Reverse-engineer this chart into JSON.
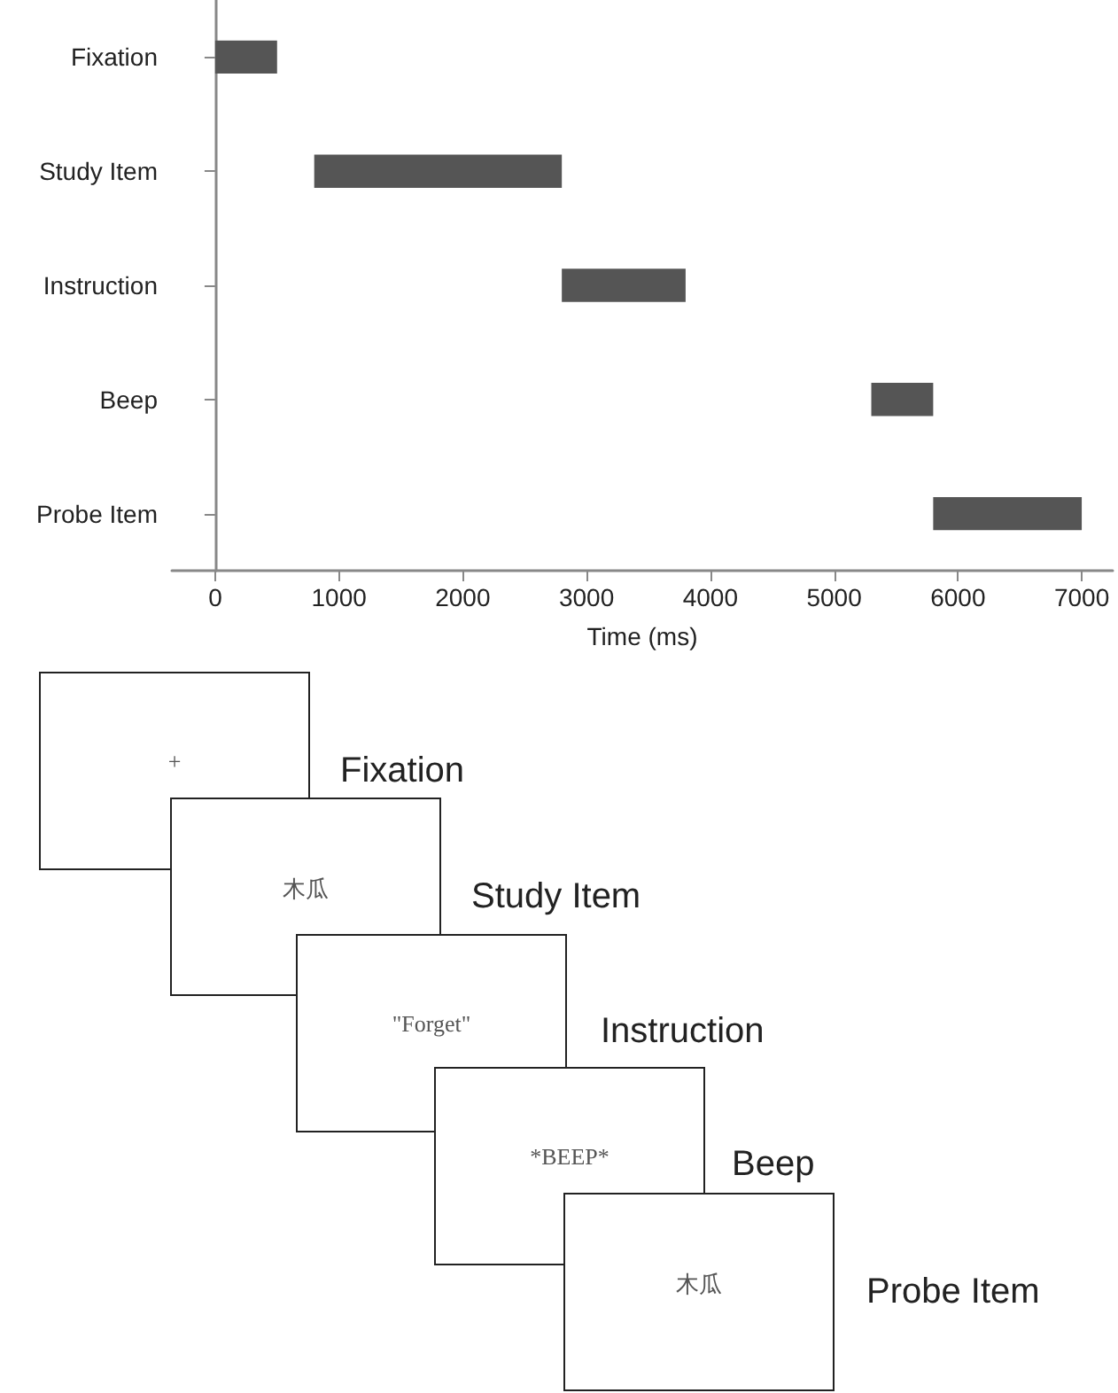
{
  "chart_data": {
    "type": "bar",
    "orientation": "horizontal",
    "xlabel": "Time (ms)",
    "categories": [
      "Fixation",
      "Study Item",
      "Instruction",
      "Beep",
      "Probe Item"
    ],
    "base": [
      0,
      800,
      2800,
      5300,
      5800
    ],
    "values": [
      500,
      2000,
      1000,
      500,
      1200
    ],
    "color": "#555555",
    "xlim": [
      -350,
      7250
    ],
    "xticks": [
      0,
      1000,
      2000,
      3000,
      4000,
      5000,
      6000,
      7000
    ],
    "annotations": [
      "+",
      "Fixation",
      "木瓜",
      "Study Item",
      "\"Forget\"",
      "Instruction",
      "*BEEP*",
      "Beep",
      "木瓜",
      "Probe Item"
    ]
  }
}
